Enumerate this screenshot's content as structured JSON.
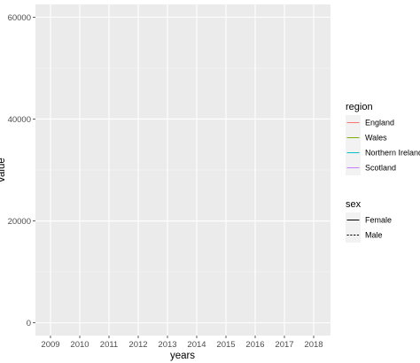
{
  "chart_data": {
    "type": "line",
    "title": "",
    "xlabel": "years",
    "ylabel": "value",
    "x_categories": [
      "2009",
      "2010",
      "2011",
      "2012",
      "2013",
      "2014",
      "2015",
      "2016",
      "2017",
      "2018"
    ],
    "y_ticks": [
      0,
      20000,
      40000,
      60000
    ],
    "y_tick_labels": [
      "0",
      "20000",
      "40000",
      "60000"
    ],
    "ylim": [
      -2500,
      62500
    ],
    "grid": true,
    "panel_background": "#ebebeb",
    "series": [],
    "legends": [
      {
        "title": "region",
        "kind": "color",
        "items": [
          {
            "label": "England",
            "color": "#f8766d"
          },
          {
            "label": "Wales",
            "color": "#7cae00"
          },
          {
            "label": "Northern Ireland",
            "color": "#00bfc4"
          },
          {
            "label": "Scotland",
            "color": "#c77cff"
          }
        ]
      },
      {
        "title": "sex",
        "kind": "linetype",
        "items": [
          {
            "label": "Female",
            "linetype": "solid",
            "color": "#000000"
          },
          {
            "label": "Male",
            "linetype": "dashed",
            "color": "#000000"
          }
        ]
      }
    ],
    "legend_placement": "right"
  }
}
